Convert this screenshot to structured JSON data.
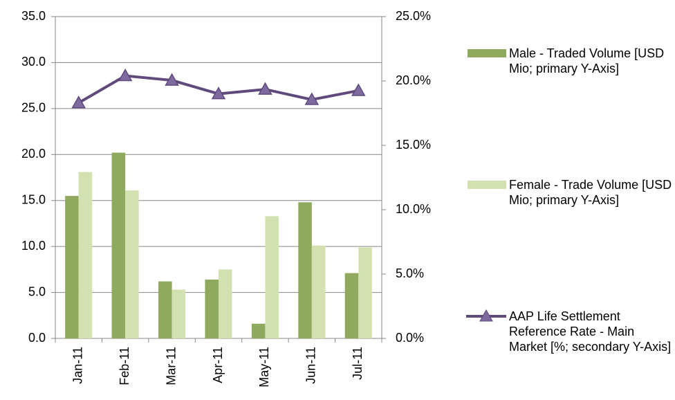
{
  "chart_data": {
    "type": "bar-line",
    "categories": [
      "Jan-11",
      "Feb-11",
      "Mar-11",
      "Apr-11",
      "May-11",
      "Jun-11",
      "Jul-11"
    ],
    "series": [
      {
        "name": "Male - Traded Volume [USD Mio; primary Y-Axis]",
        "type": "bar",
        "color": "#8fa95e",
        "values": [
          15.5,
          20.2,
          6.2,
          6.4,
          1.6,
          14.8,
          7.1
        ]
      },
      {
        "name": "Female - Trade Volume [USD Mio; primary Y-Axis]",
        "type": "bar",
        "color": "#d3e1b0",
        "values": [
          18.1,
          16.1,
          5.3,
          7.5,
          13.3,
          10.1,
          9.9
        ]
      },
      {
        "name": "AAP Life Settlement Reference Rate - Main Market [%; secondary Y-Axis]",
        "type": "line",
        "axis": "y2",
        "color": "#604a7b",
        "values": [
          18.3,
          20.4,
          20.05,
          19.0,
          19.35,
          18.55,
          19.25
        ]
      }
    ],
    "ylim": [
      0,
      35
    ],
    "yticks": [
      {
        "value": 0,
        "label": "0.0"
      },
      {
        "value": 5,
        "label": "5.0"
      },
      {
        "value": 10,
        "label": "10.0"
      },
      {
        "value": 15,
        "label": "15.0"
      },
      {
        "value": 20,
        "label": "20.0"
      },
      {
        "value": 25,
        "label": "25.0"
      },
      {
        "value": 30,
        "label": "30.0"
      },
      {
        "value": 35,
        "label": "35.0"
      }
    ],
    "y2lim": [
      0,
      25
    ],
    "y2ticks": [
      {
        "value": 0,
        "label": "0.0%"
      },
      {
        "value": 5,
        "label": "5.0%"
      },
      {
        "value": 10,
        "label": "10.0%"
      },
      {
        "value": 15,
        "label": "15.0%"
      },
      {
        "value": 20,
        "label": "20.0%"
      },
      {
        "value": 25,
        "label": "25.0%"
      }
    ],
    "grid": true
  }
}
